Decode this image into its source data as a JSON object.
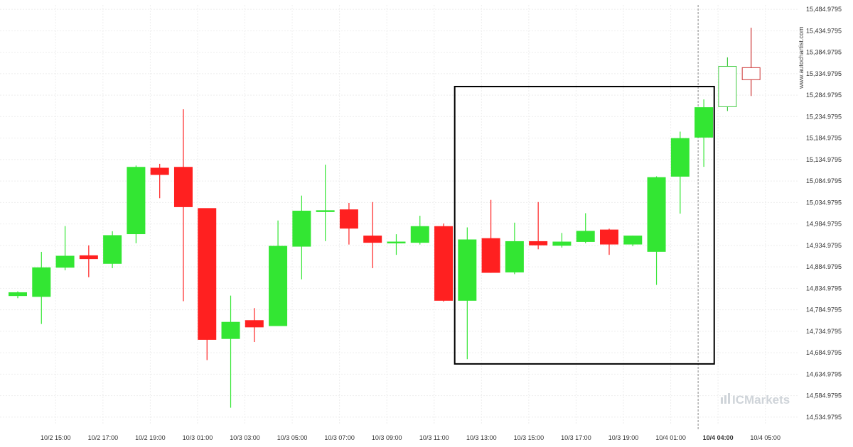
{
  "chart_data": {
    "type": "candlestick",
    "ylim": [
      14520,
      15495
    ],
    "y_ticks": [
      "15,484.9795",
      "15,434.9795",
      "15,384.9795",
      "15,334.9795",
      "15,284.9795",
      "15,234.9795",
      "15,184.9795",
      "15,134.9795",
      "15,084.9795",
      "15,034.9795",
      "14,984.9795",
      "14,934.9795",
      "14,884.9795",
      "14,834.9795",
      "14,784.9795",
      "14,734.9795",
      "14,684.9795",
      "14,634.9795",
      "14,584.9795",
      "14,534.9795"
    ],
    "y_tick_values": [
      15484.9795,
      15434.9795,
      15384.9795,
      15334.9795,
      15284.9795,
      15234.9795,
      15184.9795,
      15134.9795,
      15084.9795,
      15034.9795,
      14984.9795,
      14934.9795,
      14884.9795,
      14834.9795,
      14784.9795,
      14734.9795,
      14684.9795,
      14634.9795,
      14584.9795,
      14534.9795
    ],
    "x_ticks": [
      {
        "label": "10/2 15:00",
        "index": 1
      },
      {
        "label": "10/2 17:00",
        "index": 3
      },
      {
        "label": "10/2 19:00",
        "index": 5
      },
      {
        "label": "10/3 01:00",
        "index": 7
      },
      {
        "label": "10/3 03:00",
        "index": 9
      },
      {
        "label": "10/3 05:00",
        "index": 11
      },
      {
        "label": "10/3 07:00",
        "index": 13
      },
      {
        "label": "10/3 09:00",
        "index": 15
      },
      {
        "label": "10/3 11:00",
        "index": 17
      },
      {
        "label": "10/3 13:00",
        "index": 19
      },
      {
        "label": "10/3 15:00",
        "index": 21
      },
      {
        "label": "10/3 17:00",
        "index": 23
      },
      {
        "label": "10/3 19:00",
        "index": 25
      },
      {
        "label": "10/4 01:00",
        "index": 27
      },
      {
        "label": "10/4 04:00",
        "index": 29,
        "bold": true
      },
      {
        "label": "10/4 05:00",
        "index": 31
      }
    ],
    "candles": [
      {
        "o": 14818,
        "h": 14828,
        "l": 14812,
        "c": 14825
      },
      {
        "o": 14816,
        "h": 14920,
        "l": 14752,
        "c": 14883
      },
      {
        "o": 14884,
        "h": 14980,
        "l": 14877,
        "c": 14910
      },
      {
        "o": 14911,
        "h": 14935,
        "l": 14861,
        "c": 14904
      },
      {
        "o": 14893,
        "h": 14968,
        "l": 14882,
        "c": 14958
      },
      {
        "o": 14962,
        "h": 15121,
        "l": 14940,
        "c": 15117
      },
      {
        "o": 15115,
        "h": 15125,
        "l": 15045,
        "c": 15100
      },
      {
        "o": 15117,
        "h": 15252,
        "l": 14805,
        "c": 15025
      },
      {
        "o": 15021,
        "h": 15021,
        "l": 14668,
        "c": 14716
      },
      {
        "o": 14718,
        "h": 14818,
        "l": 14557,
        "c": 14756
      },
      {
        "o": 14760,
        "h": 14789,
        "l": 14710,
        "c": 14745
      },
      {
        "o": 14748,
        "h": 14993,
        "l": 14748,
        "c": 14933
      },
      {
        "o": 14933,
        "h": 15051,
        "l": 14856,
        "c": 15015
      },
      {
        "o": 15016,
        "h": 15123,
        "l": 14945,
        "c": 15016
      },
      {
        "o": 15018,
        "h": 15034,
        "l": 14937,
        "c": 14975
      },
      {
        "o": 14957,
        "h": 15036,
        "l": 14882,
        "c": 14942
      },
      {
        "o": 14941,
        "h": 14961,
        "l": 14913,
        "c": 14943
      },
      {
        "o": 14942,
        "h": 15004,
        "l": 14937,
        "c": 14979
      },
      {
        "o": 14979,
        "h": 14986,
        "l": 14804,
        "c": 14807
      },
      {
        "o": 14807,
        "h": 14977,
        "l": 14670,
        "c": 14948
      },
      {
        "o": 14951,
        "h": 15041,
        "l": 14871,
        "c": 14872
      },
      {
        "o": 14873,
        "h": 14988,
        "l": 14868,
        "c": 14944
      },
      {
        "o": 14944,
        "h": 15036,
        "l": 14926,
        "c": 14936
      },
      {
        "o": 14935,
        "h": 14964,
        "l": 14930,
        "c": 14943
      },
      {
        "o": 14944,
        "h": 15010,
        "l": 14940,
        "c": 14968
      },
      {
        "o": 14971,
        "h": 14974,
        "l": 14913,
        "c": 14938
      },
      {
        "o": 14938,
        "h": 14958,
        "l": 14933,
        "c": 14957
      },
      {
        "o": 14921,
        "h": 15096,
        "l": 14843,
        "c": 15093
      },
      {
        "o": 15096,
        "h": 15200,
        "l": 15009,
        "c": 15184
      },
      {
        "o": 15187,
        "h": 15275,
        "l": 15118,
        "c": 15256
      },
      {
        "o": 15258,
        "h": 15373,
        "l": 15248,
        "c": 15352,
        "hollow": true
      },
      {
        "o": 15349,
        "h": 15442,
        "l": 15283,
        "c": 15321,
        "hollow": true
      }
    ],
    "highlight_box": {
      "from_index": 18.5,
      "to_index": 29.5,
      "y_top": 15305,
      "y_bottom": 14659
    },
    "marker_index": 29,
    "colors": {
      "up": "#33e633",
      "down": "#ff2020",
      "hollow_up": "#44cc44",
      "hollow_down": "#cc3333",
      "box": "#000000",
      "marker": "#888888"
    },
    "watermark": "www.autochartist.com",
    "brand": "ICMarkets"
  }
}
